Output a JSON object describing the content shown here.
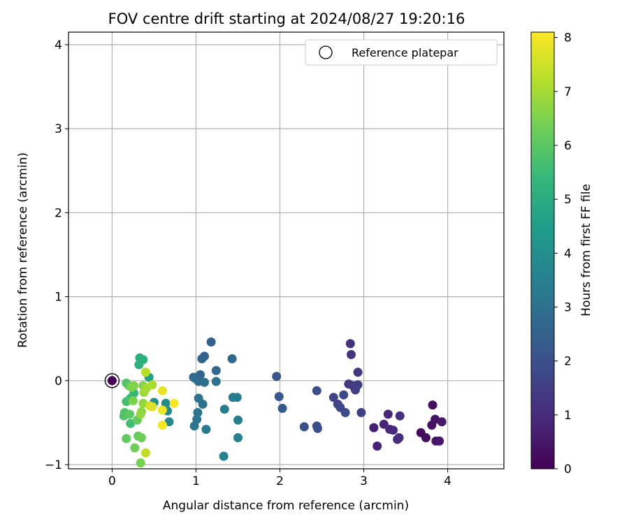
{
  "chart_data": {
    "type": "scatter",
    "title": "FOV centre drift starting at 2024/08/27 19:20:16",
    "xlabel": "Angular distance from reference (arcmin)",
    "ylabel": "Rotation from reference (arcmin)",
    "xlim": [
      -0.52,
      4.67
    ],
    "ylim": [
      -1.05,
      4.15
    ],
    "xticks": [
      "0",
      "1",
      "2",
      "3",
      "4"
    ],
    "xtick_values": [
      0,
      1,
      2,
      3,
      4
    ],
    "yticks": [
      "−1",
      "0",
      "1",
      "2",
      "3",
      "4"
    ],
    "ytick_values": [
      -1,
      0,
      1,
      2,
      3,
      4
    ],
    "grid": true,
    "legend": {
      "label": "Reference platepar",
      "placement": "top-right"
    },
    "reference_point": {
      "x": 0,
      "y": 0
    },
    "colorbar": {
      "label": "Hours from first FF file",
      "range": [
        0,
        8.1
      ],
      "ticks": [
        "0",
        "1",
        "2",
        "3",
        "4",
        "5",
        "6",
        "7",
        "8"
      ],
      "tick_values": [
        0,
        1,
        2,
        3,
        4,
        5,
        6,
        7,
        8
      ],
      "colormap": [
        "#440154",
        "#482878",
        "#3e4989",
        "#31688e",
        "#26828e",
        "#1f9e89",
        "#35b779",
        "#6ece58",
        "#b5de2b",
        "#fde725"
      ]
    },
    "points": [
      {
        "x": 0.0,
        "y": 0.0,
        "h": 0.0
      },
      {
        "x": 3.68,
        "y": -0.62,
        "h": 0.2
      },
      {
        "x": 3.74,
        "y": -0.68,
        "h": 0.25
      },
      {
        "x": 3.82,
        "y": -0.29,
        "h": 0.3
      },
      {
        "x": 3.81,
        "y": -0.53,
        "h": 0.35
      },
      {
        "x": 3.85,
        "y": -0.46,
        "h": 0.4
      },
      {
        "x": 3.86,
        "y": -0.72,
        "h": 0.45
      },
      {
        "x": 3.9,
        "y": -0.72,
        "h": 0.5
      },
      {
        "x": 3.93,
        "y": -0.49,
        "h": 0.55
      },
      {
        "x": 3.12,
        "y": -0.56,
        "h": 0.7
      },
      {
        "x": 3.16,
        "y": -0.78,
        "h": 0.75
      },
      {
        "x": 3.24,
        "y": -0.52,
        "h": 0.8
      },
      {
        "x": 3.29,
        "y": -0.4,
        "h": 0.85
      },
      {
        "x": 3.31,
        "y": -0.58,
        "h": 0.9
      },
      {
        "x": 3.35,
        "y": -0.59,
        "h": 0.95
      },
      {
        "x": 3.4,
        "y": -0.7,
        "h": 1.0
      },
      {
        "x": 3.42,
        "y": -0.68,
        "h": 1.05
      },
      {
        "x": 3.43,
        "y": -0.42,
        "h": 1.1
      },
      {
        "x": 2.84,
        "y": 0.44,
        "h": 1.2
      },
      {
        "x": 2.85,
        "y": 0.31,
        "h": 1.25
      },
      {
        "x": 2.93,
        "y": 0.1,
        "h": 1.3
      },
      {
        "x": 2.82,
        "y": -0.04,
        "h": 1.35
      },
      {
        "x": 2.87,
        "y": -0.06,
        "h": 1.4
      },
      {
        "x": 2.9,
        "y": -0.11,
        "h": 1.45
      },
      {
        "x": 2.93,
        "y": -0.05,
        "h": 1.5
      },
      {
        "x": 2.97,
        "y": -0.38,
        "h": 1.55
      },
      {
        "x": 2.64,
        "y": -0.2,
        "h": 1.65
      },
      {
        "x": 2.69,
        "y": -0.28,
        "h": 1.7
      },
      {
        "x": 2.72,
        "y": -0.32,
        "h": 1.75
      },
      {
        "x": 2.76,
        "y": -0.17,
        "h": 1.8
      },
      {
        "x": 2.78,
        "y": -0.38,
        "h": 1.85
      },
      {
        "x": 2.44,
        "y": -0.12,
        "h": 1.9
      },
      {
        "x": 2.44,
        "y": -0.54,
        "h": 1.95
      },
      {
        "x": 2.45,
        "y": -0.57,
        "h": 2.0
      },
      {
        "x": 2.29,
        "y": -0.55,
        "h": 2.05
      },
      {
        "x": 1.96,
        "y": 0.05,
        "h": 2.15
      },
      {
        "x": 1.99,
        "y": -0.19,
        "h": 2.2
      },
      {
        "x": 2.03,
        "y": -0.33,
        "h": 2.25
      },
      {
        "x": 1.18,
        "y": 0.46,
        "h": 2.5
      },
      {
        "x": 1.1,
        "y": 0.29,
        "h": 2.55
      },
      {
        "x": 1.07,
        "y": 0.26,
        "h": 2.6
      },
      {
        "x": 1.05,
        "y": 0.07,
        "h": 2.65
      },
      {
        "x": 1.24,
        "y": 0.12,
        "h": 2.7
      },
      {
        "x": 1.43,
        "y": 0.26,
        "h": 2.75
      },
      {
        "x": 0.97,
        "y": 0.04,
        "h": 2.8
      },
      {
        "x": 1.0,
        "y": 0.02,
        "h": 2.85
      },
      {
        "x": 1.03,
        "y": -0.01,
        "h": 2.9
      },
      {
        "x": 1.1,
        "y": -0.02,
        "h": 2.95
      },
      {
        "x": 1.24,
        "y": -0.01,
        "h": 3.0
      },
      {
        "x": 1.03,
        "y": -0.21,
        "h": 3.05
      },
      {
        "x": 1.08,
        "y": -0.28,
        "h": 3.1
      },
      {
        "x": 1.02,
        "y": -0.38,
        "h": 3.15
      },
      {
        "x": 1.01,
        "y": -0.46,
        "h": 3.2
      },
      {
        "x": 0.98,
        "y": -0.54,
        "h": 3.25
      },
      {
        "x": 1.12,
        "y": -0.58,
        "h": 3.3
      },
      {
        "x": 1.34,
        "y": -0.34,
        "h": 3.35
      },
      {
        "x": 1.44,
        "y": -0.2,
        "h": 3.4
      },
      {
        "x": 1.49,
        "y": -0.2,
        "h": 3.45
      },
      {
        "x": 1.5,
        "y": -0.47,
        "h": 3.5
      },
      {
        "x": 1.5,
        "y": -0.68,
        "h": 3.55
      },
      {
        "x": 1.33,
        "y": -0.9,
        "h": 3.6
      },
      {
        "x": 0.68,
        "y": -0.49,
        "h": 3.8
      },
      {
        "x": 0.66,
        "y": -0.36,
        "h": 3.85
      },
      {
        "x": 0.64,
        "y": -0.27,
        "h": 3.9
      },
      {
        "x": 0.5,
        "y": -0.26,
        "h": 4.0
      },
      {
        "x": 0.44,
        "y": 0.04,
        "h": 4.6
      },
      {
        "x": 0.33,
        "y": 0.27,
        "h": 5.0
      },
      {
        "x": 0.37,
        "y": 0.25,
        "h": 5.1
      },
      {
        "x": 0.32,
        "y": 0.19,
        "h": 5.2
      },
      {
        "x": 0.26,
        "y": -0.15,
        "h": 5.4
      },
      {
        "x": 0.22,
        "y": -0.21,
        "h": 5.5
      },
      {
        "x": 0.22,
        "y": -0.51,
        "h": 5.6
      },
      {
        "x": 0.17,
        "y": -0.25,
        "h": 5.7
      },
      {
        "x": 0.15,
        "y": -0.38,
        "h": 5.8
      },
      {
        "x": 0.14,
        "y": -0.42,
        "h": 5.85
      },
      {
        "x": 0.17,
        "y": -0.03,
        "h": 5.9
      },
      {
        "x": 0.2,
        "y": -0.06,
        "h": 6.0
      },
      {
        "x": 0.21,
        "y": -0.4,
        "h": 6.05
      },
      {
        "x": 0.17,
        "y": -0.69,
        "h": 6.1
      },
      {
        "x": 0.3,
        "y": -0.47,
        "h": 6.15
      },
      {
        "x": 0.31,
        "y": -0.66,
        "h": 6.2
      },
      {
        "x": 0.35,
        "y": -0.68,
        "h": 6.25
      },
      {
        "x": 0.27,
        "y": -0.8,
        "h": 6.3
      },
      {
        "x": 0.34,
        "y": -0.98,
        "h": 6.4
      },
      {
        "x": 0.25,
        "y": -0.24,
        "h": 6.45
      },
      {
        "x": 0.23,
        "y": -0.08,
        "h": 6.5
      },
      {
        "x": 0.26,
        "y": -0.06,
        "h": 6.55
      },
      {
        "x": 0.37,
        "y": -0.06,
        "h": 6.6
      },
      {
        "x": 0.35,
        "y": -0.37,
        "h": 6.7
      },
      {
        "x": 0.34,
        "y": -0.4,
        "h": 6.75
      },
      {
        "x": 0.37,
        "y": -0.27,
        "h": 6.8
      },
      {
        "x": 0.38,
        "y": -0.14,
        "h": 6.9
      },
      {
        "x": 0.41,
        "y": -0.09,
        "h": 7.0
      },
      {
        "x": 0.48,
        "y": -0.05,
        "h": 7.1
      },
      {
        "x": 0.4,
        "y": 0.1,
        "h": 7.2
      },
      {
        "x": 0.4,
        "y": -0.86,
        "h": 7.3
      },
      {
        "x": 0.45,
        "y": -0.3,
        "h": 7.6
      },
      {
        "x": 0.48,
        "y": -0.31,
        "h": 7.7
      },
      {
        "x": 0.6,
        "y": -0.12,
        "h": 7.8
      },
      {
        "x": 0.6,
        "y": -0.35,
        "h": 7.9
      },
      {
        "x": 0.6,
        "y": -0.53,
        "h": 8.0
      },
      {
        "x": 0.74,
        "y": -0.27,
        "h": 8.05
      }
    ]
  }
}
